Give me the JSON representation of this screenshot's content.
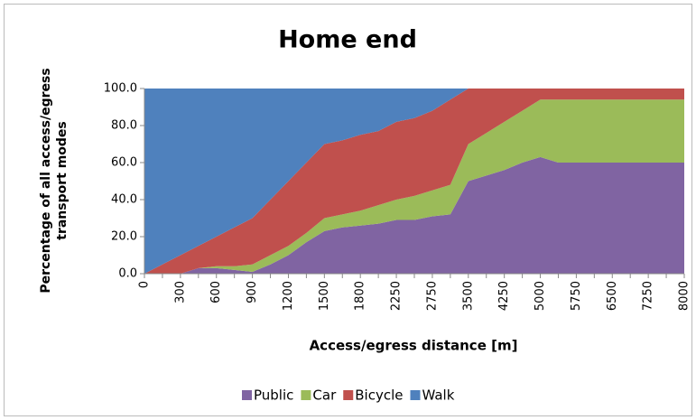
{
  "chart_data": {
    "type": "stacked_area",
    "title": "Home end",
    "x_label": "Access/egress distance  [m]",
    "y_label": "Percentage of all access/egress transport modes",
    "categories": [
      "0",
      null,
      "300",
      null,
      "600",
      null,
      "900",
      null,
      "1200",
      null,
      "1500",
      null,
      "1800",
      null,
      "2250",
      null,
      "2750",
      null,
      "3500",
      null,
      "4250",
      null,
      "5000",
      null,
      "5750",
      null,
      "6500",
      null,
      "7250",
      null,
      "8000"
    ],
    "series": [
      {
        "name": "Public",
        "color": "#8064a2",
        "values": [
          0,
          0,
          0,
          3,
          3,
          2,
          1,
          5,
          10,
          17,
          23,
          25,
          26,
          27,
          29,
          29,
          31,
          32,
          50,
          53,
          56,
          60,
          63,
          60,
          60,
          60,
          60,
          60,
          60,
          60,
          60
        ]
      },
      {
        "name": "Car",
        "color": "#9bbb59",
        "values": [
          0,
          0,
          0,
          0,
          1,
          2,
          4,
          5,
          5,
          5,
          7,
          7,
          8,
          10,
          11,
          13,
          14,
          16,
          20,
          23,
          26,
          28,
          31,
          34,
          34,
          34,
          34,
          34,
          34,
          34,
          34
        ]
      },
      {
        "name": "Bicycle",
        "color": "#c0504d",
        "values": [
          0,
          5,
          10,
          12,
          16,
          21,
          25,
          30,
          35,
          38,
          40,
          40,
          41,
          40,
          42,
          42,
          43,
          46,
          30,
          24,
          18,
          12,
          6,
          6,
          6,
          6,
          6,
          6,
          6,
          6,
          6
        ]
      },
      {
        "name": "Walk",
        "color": "#4f81bd",
        "values": [
          100,
          95,
          90,
          85,
          80,
          75,
          70,
          60,
          50,
          40,
          30,
          28,
          25,
          23,
          18,
          16,
          12,
          6,
          0,
          0,
          0,
          0,
          0,
          0,
          0,
          0,
          0,
          0,
          0,
          0,
          0
        ]
      }
    ],
    "ylim": [
      0,
      100
    ],
    "yticks": [
      {
        "value": 0,
        "label": "0.0"
      },
      {
        "value": 20,
        "label": "20.0"
      },
      {
        "value": 40,
        "label": "40.0"
      },
      {
        "value": 60,
        "label": "60.0"
      },
      {
        "value": 80,
        "label": "80.0"
      },
      {
        "value": 100,
        "label": "100.0"
      }
    ],
    "legend": "bottom"
  }
}
